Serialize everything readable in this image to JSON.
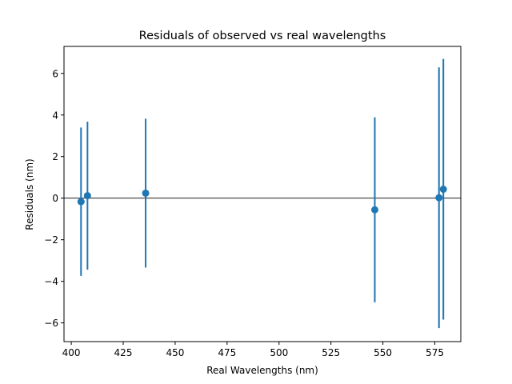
{
  "chart_data": {
    "type": "scatter",
    "title": "Residuals of observed vs real wavelengths",
    "xlabel": "Real Wavelengths (nm)",
    "ylabel": "Residuals (nm)",
    "xlim": [
      396.5,
      587.5
    ],
    "ylim": [
      -6.9,
      7.3
    ],
    "xticks": [
      400,
      425,
      450,
      475,
      500,
      525,
      550,
      575
    ],
    "yticks": [
      -6,
      -4,
      -2,
      0,
      2,
      4,
      6
    ],
    "xtick_labels": [
      "400",
      "425",
      "450",
      "475",
      "500",
      "525",
      "550",
      "575"
    ],
    "ytick_labels": [
      "−6",
      "−4",
      "−2",
      "0",
      "2",
      "4",
      "6"
    ],
    "reference_line_y": 0,
    "grid": false,
    "color": "#1f77b4",
    "points": [
      {
        "x": 404.7,
        "y": -0.17,
        "err": 3.57
      },
      {
        "x": 407.8,
        "y": 0.12,
        "err": 3.56
      },
      {
        "x": 435.8,
        "y": 0.24,
        "err": 3.58
      },
      {
        "x": 546.1,
        "y": -0.56,
        "err": 4.45
      },
      {
        "x": 577.0,
        "y": 0.02,
        "err": 6.27
      },
      {
        "x": 579.1,
        "y": 0.43,
        "err": 6.27
      }
    ]
  }
}
